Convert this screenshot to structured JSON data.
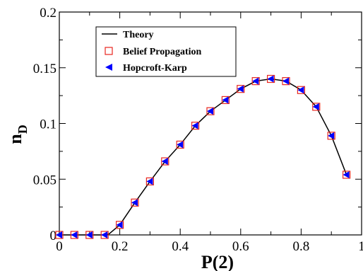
{
  "chart_data": {
    "type": "line",
    "xlabel": "P(2)",
    "ylabel_main": "n",
    "ylabel_sub": "D",
    "xlim": [
      0,
      1
    ],
    "ylim": [
      0,
      0.2
    ],
    "x_ticks": [
      "0",
      "0.2",
      "0.4",
      "0.6",
      "0.8",
      "1"
    ],
    "y_ticks": [
      "0",
      "0.05",
      "0.1",
      "0.15",
      "0.2"
    ],
    "grid": false,
    "legend_position": "top-left",
    "legend": {
      "theory": "Theory",
      "bp": "Belief Propagation",
      "hk": "Hopcroft-Karp"
    },
    "colors": {
      "theory": "#000000",
      "bp": "#e8261f",
      "hk": "#0000ff"
    },
    "x": [
      0,
      0.05,
      0.1,
      0.15,
      0.2,
      0.25,
      0.3,
      0.35,
      0.4,
      0.45,
      0.5,
      0.55,
      0.6,
      0.65,
      0.7,
      0.75,
      0.8,
      0.85,
      0.9,
      0.95
    ],
    "series": [
      {
        "name": "Theory",
        "style": "line",
        "x": [
          0,
          0.05,
          0.1,
          0.15,
          0.165,
          0.2,
          0.25,
          0.3,
          0.35,
          0.4,
          0.45,
          0.5,
          0.55,
          0.6,
          0.65,
          0.7,
          0.75,
          0.8,
          0.85,
          0.9,
          0.95
        ],
        "values": [
          0,
          0,
          0,
          0,
          0.001,
          0.009,
          0.029,
          0.048,
          0.066,
          0.081,
          0.098,
          0.111,
          0.121,
          0.131,
          0.138,
          0.14,
          0.138,
          0.13,
          0.115,
          0.089,
          0.054
        ]
      },
      {
        "name": "Belief Propagation",
        "style": "open-square",
        "values": [
          0,
          0,
          0,
          0,
          0.009,
          0.029,
          0.048,
          0.066,
          0.081,
          0.098,
          0.111,
          0.121,
          0.131,
          0.138,
          0.14,
          0.138,
          0.13,
          0.115,
          0.089,
          0.054
        ]
      },
      {
        "name": "Hopcroft-Karp",
        "style": "left-triangle",
        "values": [
          0,
          0,
          0,
          0,
          0.009,
          0.029,
          0.048,
          0.066,
          0.081,
          0.098,
          0.111,
          0.121,
          0.131,
          0.138,
          0.14,
          0.138,
          0.13,
          0.115,
          0.089,
          0.054
        ]
      }
    ]
  }
}
